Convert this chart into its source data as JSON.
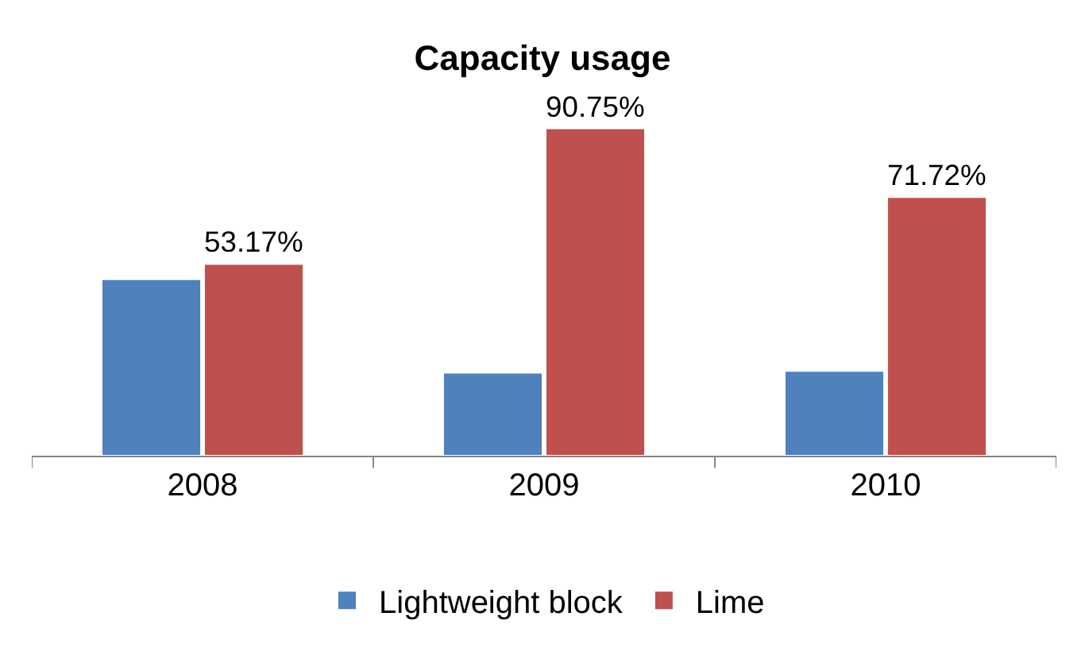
{
  "chart_data": {
    "type": "bar",
    "title": "Capacity usage",
    "categories": [
      "2008",
      "2009",
      "2010"
    ],
    "series": [
      {
        "name": "Lightweight block",
        "color": "#4f81bd",
        "values": [
          48.9,
          23.0,
          23.5
        ]
      },
      {
        "name": "Lime",
        "color": "#c0504d",
        "values": [
          53.17,
          90.75,
          71.72
        ],
        "value_labels": [
          "53.17%",
          "90.75%",
          "71.72%"
        ]
      }
    ],
    "legend": "bottom",
    "tick_labels": "x"
  }
}
